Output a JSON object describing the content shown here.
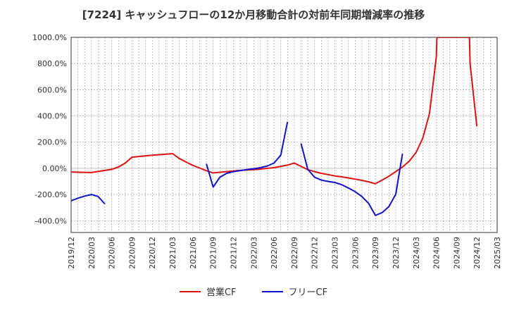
{
  "chart_data": {
    "type": "line",
    "title": "[7224]  キャッシュフローの12か月移動合計の対前年同期増減率の推移",
    "xlabel": "",
    "ylabel": "",
    "ylim": [
      -490,
      1000
    ],
    "yticks": [
      1000,
      800,
      600,
      400,
      200,
      0,
      -200,
      -400
    ],
    "ytick_labels": [
      "1000.0%",
      "800.0%",
      "600.0%",
      "400.0%",
      "200.0%",
      "0.00%",
      "-200.0%",
      "-400.0%"
    ],
    "x_start": "2019-12",
    "x_end": "2025-03",
    "xtick_labels": [
      "2019/12",
      "2020/03",
      "2020/06",
      "2020/09",
      "2020/12",
      "2021/03",
      "2021/06",
      "2021/09",
      "2021/12",
      "2022/03",
      "2022/06",
      "2022/09",
      "2022/12",
      "2023/03",
      "2023/06",
      "2023/09",
      "2023/12",
      "2024/03",
      "2024/06",
      "2024/09",
      "2024/12",
      "2025/03"
    ],
    "grid": true,
    "legend_position": "bottom",
    "series": [
      {
        "name": "営業CF",
        "color": "#dd1111",
        "points": [
          [
            "2019-12",
            -28
          ],
          [
            "2020-03",
            -32
          ],
          [
            "2020-06",
            -8
          ],
          [
            "2020-07",
            10
          ],
          [
            "2020-08",
            40
          ],
          [
            "2020-09",
            85
          ],
          [
            "2020-12",
            100
          ],
          [
            "2021-03",
            112
          ],
          [
            "2021-04",
            75
          ],
          [
            "2021-05",
            48
          ],
          [
            "2021-06",
            22
          ],
          [
            "2021-07",
            2
          ],
          [
            "2021-08",
            -18
          ],
          [
            "2021-09",
            -35
          ],
          [
            "2021-10",
            -30
          ],
          [
            "2021-11",
            -25
          ],
          [
            "2021-12",
            -20
          ],
          [
            "2022-01",
            -16
          ],
          [
            "2022-02",
            -13
          ],
          [
            "2022-03",
            -10
          ],
          [
            "2022-04",
            -6
          ],
          [
            "2022-05",
            0
          ],
          [
            "2022-06",
            5
          ],
          [
            "2022-07",
            15
          ],
          [
            "2022-08",
            25
          ],
          [
            "2022-09",
            40
          ],
          [
            "2022-10",
            15
          ],
          [
            "2022-11",
            -10
          ],
          [
            "2022-12",
            -25
          ],
          [
            "2023-01",
            -38
          ],
          [
            "2023-02",
            -48
          ],
          [
            "2023-03",
            -58
          ],
          [
            "2023-04",
            -65
          ],
          [
            "2023-05",
            -73
          ],
          [
            "2023-06",
            -82
          ],
          [
            "2023-07",
            -92
          ],
          [
            "2023-08",
            -103
          ],
          [
            "2023-09",
            -118
          ],
          [
            "2023-10",
            -90
          ],
          [
            "2023-11",
            -60
          ],
          [
            "2023-12",
            -25
          ],
          [
            "2024-01",
            10
          ],
          [
            "2024-02",
            55
          ],
          [
            "2024-03",
            120
          ],
          [
            "2024-04",
            230
          ],
          [
            "2024-05",
            420
          ],
          [
            "2024-06",
            850
          ],
          [
            "2024-06.1",
            1000
          ],
          [
            "2024-10.9",
            1000
          ],
          [
            "2024-11",
            800
          ],
          [
            "2024-12",
            320
          ]
        ]
      },
      {
        "name": "フリーCF",
        "color": "#1111cc",
        "segments": [
          [
            [
              "2019-12",
              -248
            ],
            [
              "2020-01",
              -228
            ],
            [
              "2020-02",
              -212
            ],
            [
              "2020-03",
              -200
            ],
            [
              "2020-04",
              -215
            ],
            [
              "2020-05",
              -272
            ]
          ],
          [
            [
              "2021-08",
              35
            ],
            [
              "2021-09",
              -143
            ],
            [
              "2021-10",
              -68
            ],
            [
              "2021-11",
              -38
            ],
            [
              "2021-12",
              -25
            ],
            [
              "2022-01",
              -17
            ],
            [
              "2022-02",
              -10
            ],
            [
              "2022-03",
              -3
            ],
            [
              "2022-04",
              5
            ],
            [
              "2022-05",
              18
            ],
            [
              "2022-06",
              40
            ],
            [
              "2022-07",
              100
            ],
            [
              "2022-08",
              355
            ]
          ],
          [
            [
              "2022-10",
              190
            ],
            [
              "2022-11",
              -8
            ],
            [
              "2022-12",
              -68
            ],
            [
              "2023-01",
              -90
            ],
            [
              "2023-02",
              -100
            ],
            [
              "2023-03",
              -108
            ],
            [
              "2023-04",
              -125
            ],
            [
              "2023-05",
              -150
            ],
            [
              "2023-06",
              -178
            ],
            [
              "2023-07",
              -215
            ],
            [
              "2023-08",
              -268
            ],
            [
              "2023-09",
              -360
            ],
            [
              "2023-10",
              -338
            ],
            [
              "2023-11",
              -292
            ],
            [
              "2023-12",
              -198
            ],
            [
              "2024-01",
              112
            ]
          ]
        ]
      }
    ]
  }
}
